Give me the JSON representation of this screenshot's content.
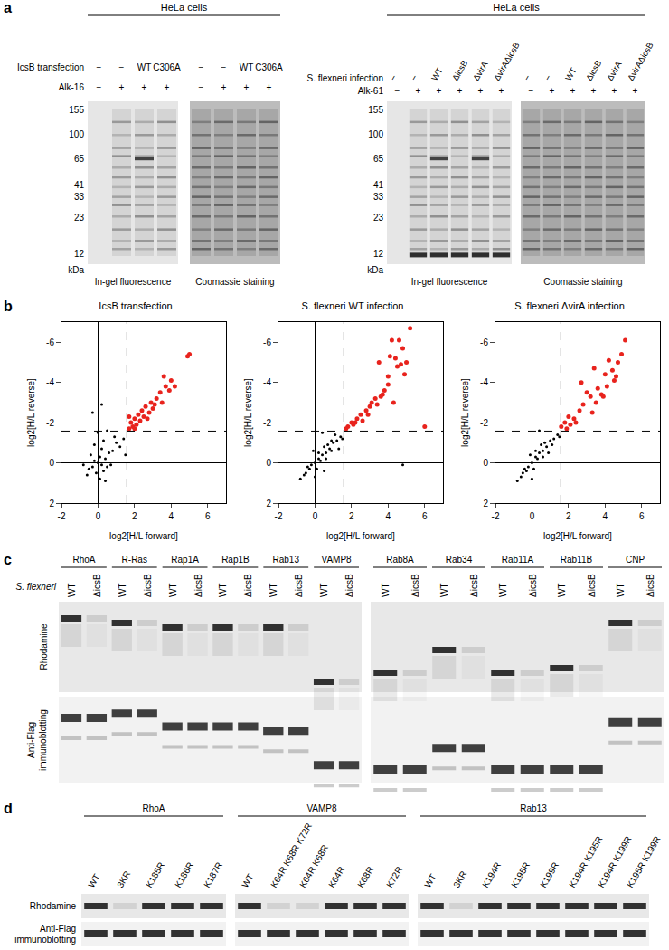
{
  "panels": {
    "a": {
      "label": "a",
      "left": {
        "header": "HeLa cells",
        "rows": [
          {
            "label": "IcsB transfection",
            "lanes": [
              "−",
              "−",
              "WT",
              "C306A"
            ]
          },
          {
            "label": "Alk-16",
            "lanes": [
              "−",
              "+",
              "+",
              "+"
            ]
          }
        ],
        "markers": [
          155,
          100,
          65,
          41,
          33,
          23,
          12
        ],
        "marker_unit": "kDa",
        "gels": [
          "In-gel fluorescence",
          "Coomassie staining"
        ]
      },
      "right": {
        "header": "HeLa cells",
        "rows": [
          {
            "label": "S. flexneri infection",
            "lanes": [
              "−",
              "−",
              "WT",
              "ΔicsB",
              "ΔvirA",
              "ΔvirAΔicsB"
            ]
          },
          {
            "label": "Alk-61",
            "lanes": [
              "−",
              "+",
              "+",
              "+",
              "+",
              "+"
            ]
          }
        ],
        "markers": [
          155,
          100,
          65,
          41,
          33,
          23,
          12
        ],
        "marker_unit": "kDa",
        "gels": [
          "In-gel fluorescence",
          "Coomassie staining"
        ]
      }
    },
    "b": {
      "label": "b"
    },
    "c": {
      "label": "c",
      "strain_label": "S. flexneri",
      "top_label": "Rhodamine",
      "bottom_label": [
        "Anti-Flag",
        "immunoblotting"
      ],
      "strains": [
        "WT",
        "ΔicsB"
      ],
      "blots": [
        [
          "RhoA",
          "R-Ras",
          "Rap1A",
          "Rap1B",
          "Rab13",
          "VAMP8"
        ],
        [
          "Rab8A",
          "Rab34",
          "Rab11A",
          "Rab11B",
          "CNP"
        ]
      ]
    },
    "d": {
      "label": "d",
      "top_label": "Rhodamine",
      "bottom_label": [
        "Anti-Flag",
        "immunoblotting"
      ],
      "groups": [
        {
          "protein": "RhoA",
          "lanes": [
            "WT",
            "3KR",
            "K185R",
            "K186R",
            "K187R"
          ]
        },
        {
          "protein": "VAMP8",
          "lanes": [
            "WT",
            "K64R K68R K72R",
            "K64R K68R",
            "K64R",
            "K68R",
            "K72R"
          ]
        },
        {
          "protein": "Rab13",
          "lanes": [
            "WT",
            "3KR",
            "K194R",
            "K195R",
            "K199R",
            "K194R K195R",
            "K194R K199R",
            "K195R K199R"
          ]
        }
      ]
    }
  },
  "chart_data": [
    {
      "type": "scatter",
      "title": "IcsB transfection",
      "x_label": "log2[H/L forward]",
      "y_label": "log2[H/L reverse]",
      "xlim": [
        -2,
        7
      ],
      "ylim": [
        2,
        -7
      ],
      "xticks": [
        -2,
        0,
        2,
        4,
        6
      ],
      "yticks": [
        2,
        0,
        -2,
        -4,
        -6
      ],
      "cutoff_x": 1.58,
      "cutoff_y": -1.58,
      "grid": false,
      "series": [
        {
          "color": "#000000",
          "x": [
            0,
            0.2,
            -0.3,
            0.1,
            0.4,
            -0.2,
            0.3,
            -0.5,
            0.6,
            -0.1,
            0.5,
            0.8,
            -0.4,
            0.2,
            1.0,
            1.2,
            0.9,
            -0.6,
            0.1,
            0.7,
            -0.2,
            0.3,
            1.4,
            0.0,
            -0.3,
            0.2,
            0.5,
            1.5,
            -0.8,
            0.4
          ],
          "values": [
            0,
            0.1,
            0.2,
            -0.3,
            -0.2,
            -0.1,
            0.4,
            0.3,
            -0.5,
            0.5,
            0.2,
            -0.6,
            -0.4,
            -0.7,
            -1.0,
            -0.8,
            -1.3,
            0.6,
            0.8,
            0.1,
            -0.9,
            -1.1,
            -1.2,
            -1.5,
            -2.5,
            -2.9,
            -1.6,
            -0.4,
            0.1,
            0.9
          ]
        },
        {
          "color": "#e8231d",
          "x": [
            1.7,
            1.8,
            1.9,
            2.0,
            2.1,
            2.2,
            2.3,
            1.7,
            2.4,
            2.5,
            2.6,
            2.8,
            2.9,
            3.0,
            3.2,
            3.4,
            3.5,
            3.7,
            3.9,
            4.0,
            4.2,
            3.6,
            4.9,
            5.0,
            2.0,
            2.7,
            3.1
          ],
          "values": [
            -1.7,
            -2.0,
            -1.8,
            -2.2,
            -1.9,
            -2.4,
            -2.1,
            -2.3,
            -2.6,
            -2.3,
            -2.8,
            -2.5,
            -3.0,
            -2.7,
            -3.2,
            -3.5,
            -3.0,
            -3.8,
            -3.6,
            -4.1,
            -3.8,
            -4.3,
            -5.3,
            -5.4,
            -1.7,
            -2.2,
            -2.9
          ]
        }
      ]
    },
    {
      "type": "scatter",
      "title": "S. flexneri WT infection",
      "x_label": "log2[H/L forward]",
      "y_label": "log2[H/L reverse]",
      "xlim": [
        -2,
        7
      ],
      "ylim": [
        2,
        -7
      ],
      "xticks": [
        -2,
        0,
        2,
        4,
        6
      ],
      "yticks": [
        2,
        0,
        -2,
        -4,
        -6
      ],
      "cutoff_x": 1.58,
      "cutoff_y": -1.58,
      "grid": false,
      "series": [
        {
          "color": "#000000",
          "x": [
            0,
            0.2,
            -0.3,
            0.4,
            -0.5,
            0.6,
            0.8,
            1.0,
            -0.2,
            0.3,
            0.5,
            1.2,
            0.9,
            -0.6,
            0.1,
            0.7,
            1.4,
            1.1,
            -0.8,
            0.2,
            0.6,
            4.8,
            1.5,
            0.4,
            -0.1,
            0.9,
            1.3,
            -0.4,
            0.0,
            0.5
          ],
          "values": [
            0,
            -0.2,
            0.3,
            -0.4,
            0.5,
            -0.5,
            -0.7,
            -1.0,
            0.1,
            -0.1,
            -0.8,
            -1.1,
            -0.6,
            0.6,
            0.3,
            -0.9,
            -1.3,
            -1.4,
            0.8,
            -0.5,
            -0.2,
            0.1,
            -1.2,
            -1.5,
            -0.6,
            -1.1,
            -0.7,
            0.2,
            0.7,
            0.4
          ]
        },
        {
          "color": "#e8231d",
          "x": [
            1.7,
            1.8,
            2.0,
            2.1,
            2.3,
            2.5,
            2.6,
            2.8,
            3.0,
            3.1,
            3.3,
            3.4,
            3.5,
            3.7,
            3.8,
            4.0,
            4.1,
            4.2,
            4.3,
            4.4,
            4.5,
            4.6,
            4.7,
            4.8,
            5.0,
            5.2,
            4.0,
            3.6,
            4.9,
            6.0,
            2.2,
            2.9
          ],
          "values": [
            -1.7,
            -1.8,
            -2.0,
            -1.9,
            -2.2,
            -2.4,
            -2.1,
            -2.6,
            -2.8,
            -3.0,
            -3.2,
            -2.9,
            -5.0,
            -3.4,
            -3.6,
            -4.3,
            -5.3,
            -6.1,
            -3.0,
            -5.2,
            -4.8,
            -6.1,
            -4.9,
            -5.7,
            -5.0,
            -6.7,
            -3.9,
            -3.3,
            -4.4,
            -1.8,
            -2.0,
            -2.4
          ]
        }
      ]
    },
    {
      "type": "scatter",
      "title": "S. flexneri ΔvirA infection",
      "x_label": "log2[H/L forward]",
      "y_label": "log2[H/L reverse]",
      "xlim": [
        -2,
        7
      ],
      "ylim": [
        2,
        -7
      ],
      "xticks": [
        -2,
        0,
        2,
        4,
        6
      ],
      "yticks": [
        2,
        0,
        -2,
        -4,
        -6
      ],
      "cutoff_x": 1.58,
      "cutoff_y": -1.58,
      "grid": false,
      "series": [
        {
          "color": "#000000",
          "x": [
            0,
            0.2,
            -0.3,
            0.4,
            -0.5,
            0.6,
            0.8,
            1.0,
            -0.2,
            0.3,
            0.5,
            1.2,
            0.9,
            -0.6,
            0.1,
            0.7,
            1.4,
            -0.8,
            0.2,
            0.6,
            1.5,
            0.4,
            -0.1,
            1.1,
            -0.4,
            0.0
          ],
          "values": [
            0,
            -0.3,
            0.4,
            -0.5,
            0.5,
            -0.6,
            -0.8,
            -1.1,
            0.2,
            -0.2,
            -0.9,
            -1.2,
            -0.5,
            0.7,
            0.3,
            -1.0,
            -1.4,
            0.9,
            -0.6,
            -0.3,
            -1.3,
            -1.6,
            -0.4,
            -0.9,
            0.3,
            0.8
          ]
        },
        {
          "color": "#e8231d",
          "x": [
            1.6,
            1.8,
            1.9,
            2.1,
            2.3,
            2.4,
            2.6,
            2.8,
            3.0,
            3.2,
            3.3,
            3.5,
            3.6,
            3.8,
            4.0,
            4.1,
            4.2,
            4.4,
            4.5,
            4.7,
            4.9,
            5.1,
            2.0,
            2.7,
            3.4,
            3.9,
            4.6
          ],
          "values": [
            -1.8,
            -2.0,
            -1.7,
            -1.9,
            -2.2,
            -2.0,
            -2.6,
            -2.9,
            -3.5,
            -3.3,
            -2.5,
            -3.0,
            -3.7,
            -3.4,
            -4.4,
            -3.8,
            -5.1,
            -4.6,
            -4.1,
            -5.0,
            -5.4,
            -6.1,
            -2.3,
            -4.0,
            -4.7,
            -3.3,
            -4.3
          ]
        }
      ]
    }
  ]
}
